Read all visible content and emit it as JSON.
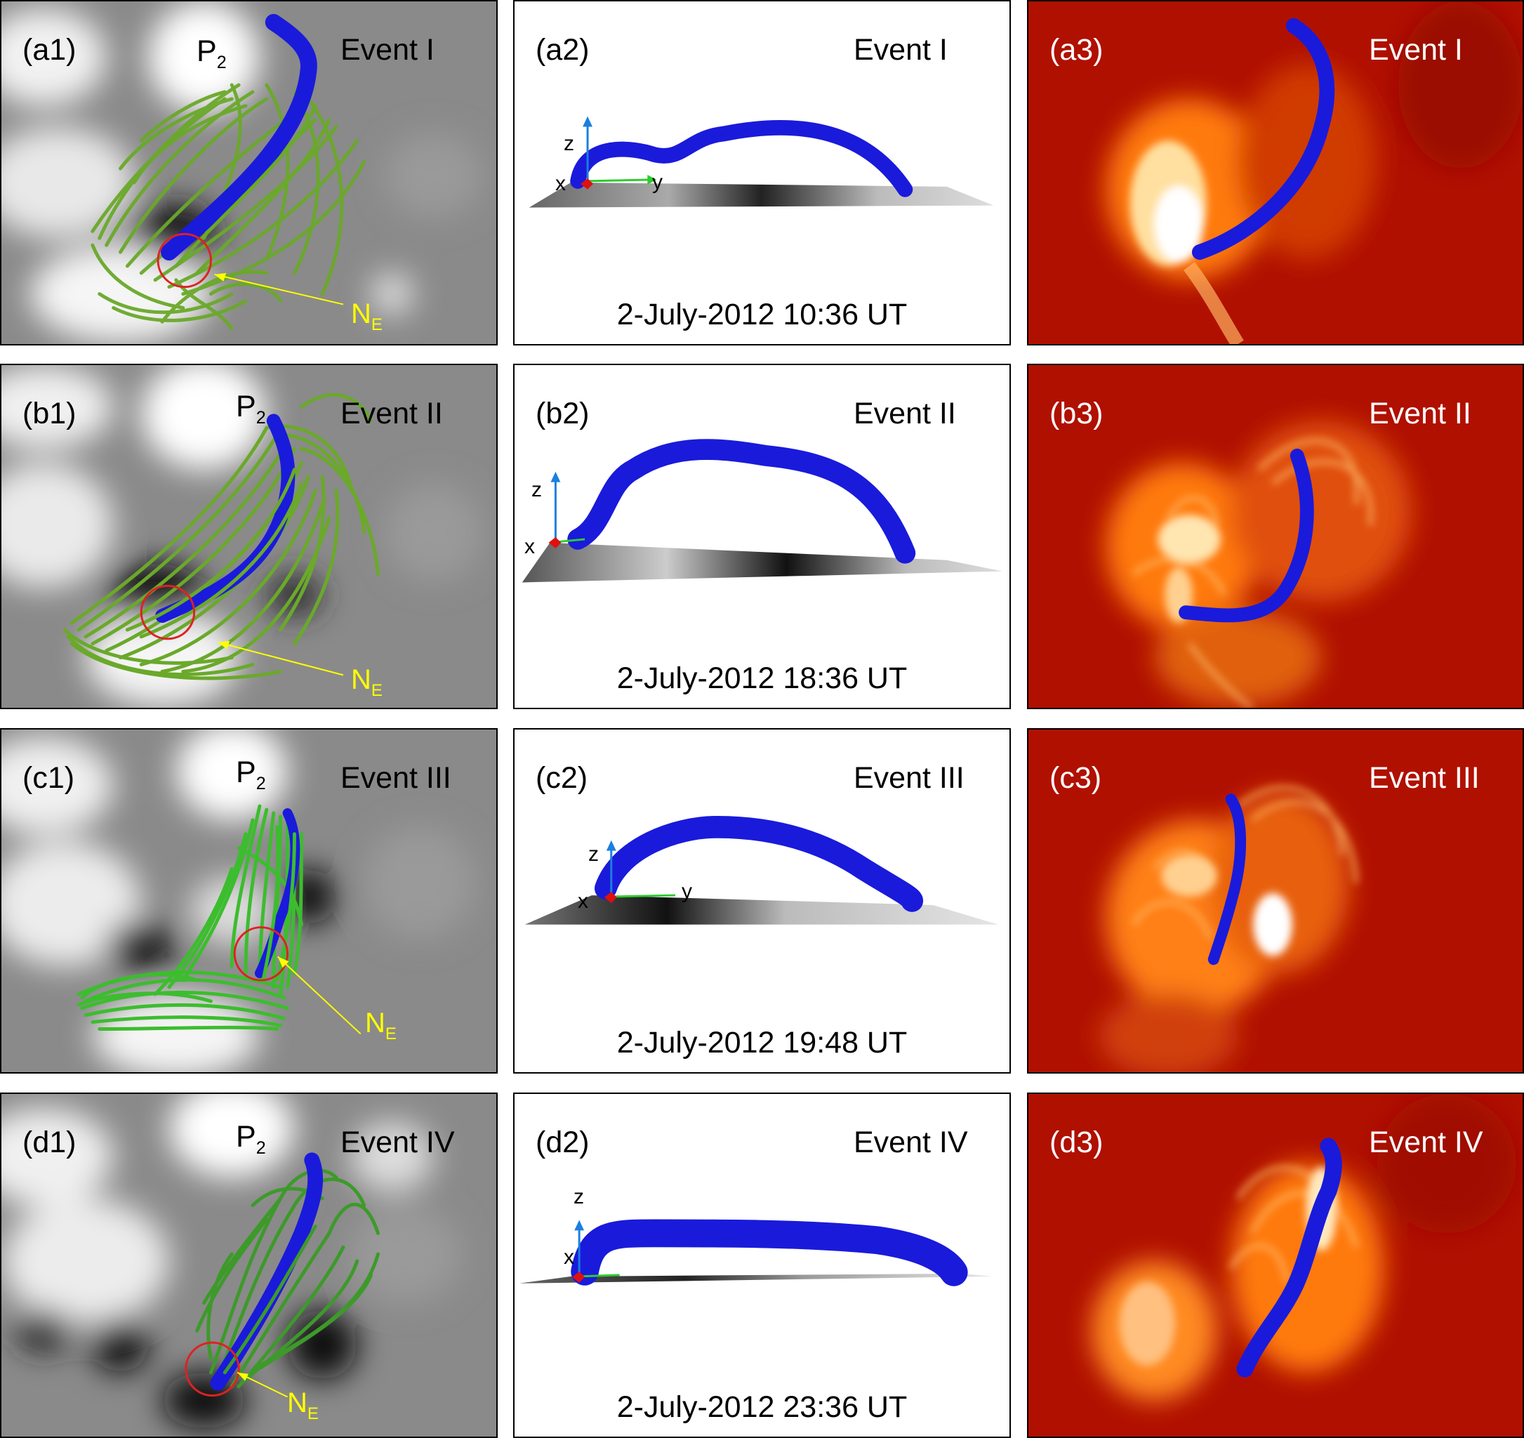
{
  "rows": [
    {
      "col1": {
        "label": "(a1)",
        "event": "Event I",
        "polarity": "P",
        "polarity_sub": "2",
        "neg": "N",
        "neg_sub": "E"
      },
      "col2": {
        "label": "(a2)",
        "event": "Event I",
        "date": "2-July-2012 10:36 UT",
        "axes": {
          "z": "z",
          "x": "x",
          "y": "y"
        }
      },
      "col3": {
        "label": "(a3)",
        "event": "Event I"
      }
    },
    {
      "col1": {
        "label": "(b1)",
        "event": "Event II",
        "polarity": "P",
        "polarity_sub": "2",
        "neg": "N",
        "neg_sub": "E"
      },
      "col2": {
        "label": "(b2)",
        "event": "Event II",
        "date": "2-July-2012 18:36 UT",
        "axes": {
          "z": "z",
          "x": "x"
        }
      },
      "col3": {
        "label": "(b3)",
        "event": "Event II"
      }
    },
    {
      "col1": {
        "label": "(c1)",
        "event": "Event III",
        "polarity": "P",
        "polarity_sub": "2",
        "neg": "N",
        "neg_sub": "E"
      },
      "col2": {
        "label": "(c2)",
        "event": "Event III",
        "date": "2-July-2012 19:48 UT",
        "axes": {
          "z": "z",
          "x": "x",
          "y": "y"
        }
      },
      "col3": {
        "label": "(c3)",
        "event": "Event III"
      }
    },
    {
      "col1": {
        "label": "(d1)",
        "event": "Event IV",
        "polarity": "P",
        "polarity_sub": "2",
        "neg": "N",
        "neg_sub": "E"
      },
      "col2": {
        "label": "(d2)",
        "event": "Event IV",
        "date": "2-July-2012 23:36 UT",
        "axes": {
          "z": "z",
          "x": "x"
        }
      },
      "col3": {
        "label": "(d3)",
        "event": "Event IV"
      }
    }
  ],
  "colors": {
    "flux_rope": "#1a1adb",
    "field_lines": "#6aa92a",
    "circle": "#dd2222",
    "annotation": "#ffff00",
    "aia_bg": "#b01000"
  }
}
